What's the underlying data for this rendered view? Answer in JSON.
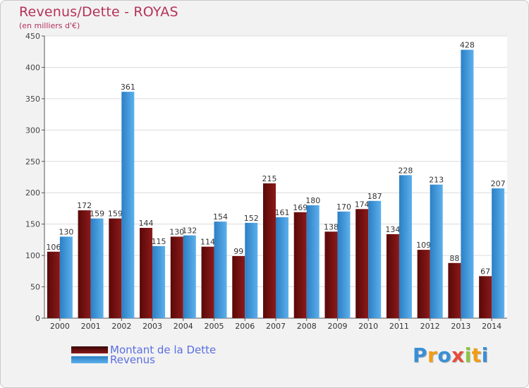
{
  "chart_data": {
    "type": "bar",
    "title": "Revenus/Dette - ROYAS",
    "subtitle": "(en milliers d'€)",
    "categories": [
      "2000",
      "2001",
      "2002",
      "2003",
      "2004",
      "2005",
      "2006",
      "2007",
      "2008",
      "2009",
      "2010",
      "2011",
      "2012",
      "2013",
      "2014"
    ],
    "series": [
      {
        "name": "Montant de la Dette",
        "color": "#8b1a1a",
        "values": [
          106,
          172,
          159,
          144,
          130,
          114,
          99,
          215,
          169,
          138,
          174,
          134,
          109,
          88,
          67
        ]
      },
      {
        "name": "Revenus",
        "color": "#3b98dc",
        "values": [
          130,
          159,
          361,
          115,
          132,
          154,
          152,
          161,
          180,
          170,
          187,
          228,
          213,
          428,
          207
        ]
      }
    ],
    "ylim": [
      0,
      450
    ],
    "yticks": [
      0,
      50,
      100,
      150,
      200,
      250,
      300,
      350,
      400,
      450
    ],
    "grid": true,
    "legend_position": "bottom-left"
  },
  "branding": {
    "logo_letters": [
      "P",
      "r",
      "o",
      "x",
      "i",
      "t",
      "i"
    ],
    "logo_colors": [
      "#3a8fd6",
      "#f39c12",
      "#3a8fd6",
      "#e74c3c",
      "#8cc63f",
      "#f39c12",
      "#3a8fd6"
    ]
  }
}
